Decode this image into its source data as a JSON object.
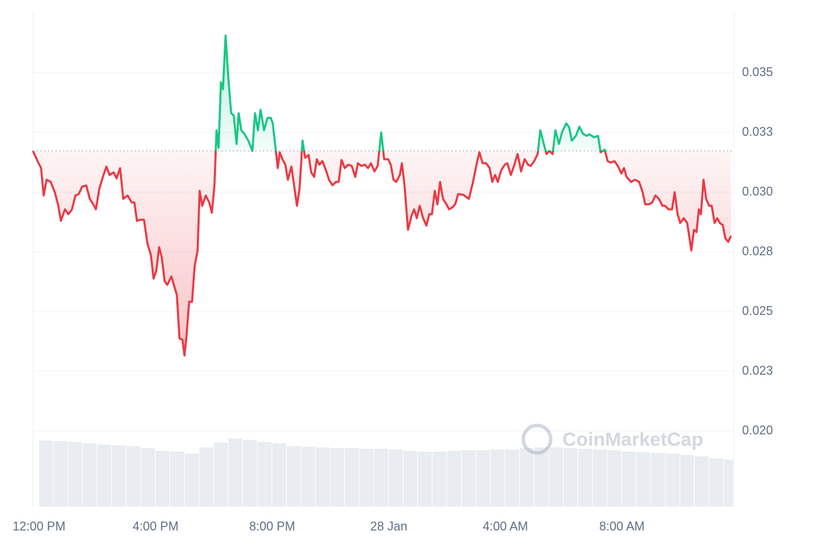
{
  "chart_data": {
    "type": "line",
    "x": [
      -0.21,
      -0.05,
      0.07,
      0.16,
      0.26,
      0.4,
      0.54,
      0.66,
      0.75,
      0.89,
      1.01,
      1.13,
      1.25,
      1.36,
      1.48,
      1.62,
      1.74,
      1.86,
      1.95,
      2.07,
      2.19,
      2.31,
      2.42,
      2.56,
      2.66,
      2.78,
      2.89,
      3.04,
      3.18,
      3.27,
      3.36,
      3.48,
      3.6,
      3.72,
      3.84,
      3.93,
      4.02,
      4.12,
      4.21,
      4.31,
      4.4,
      4.54,
      4.66,
      4.73,
      4.82,
      4.92,
      4.99,
      5.06,
      5.15,
      5.25,
      5.34,
      5.44,
      5.51,
      5.6,
      5.72,
      5.84,
      5.93,
      6.02,
      6.09,
      6.16,
      6.24,
      6.31,
      6.4,
      6.49,
      6.59,
      6.68,
      6.78,
      6.85,
      6.94,
      7.04,
      7.18,
      7.32,
      7.41,
      7.51,
      7.6,
      7.72,
      7.84,
      7.95,
      8.02,
      8.12,
      8.19,
      8.26,
      8.35,
      8.45,
      8.54,
      8.66,
      8.75,
      8.85,
      8.94,
      9.04,
      9.13,
      9.25,
      9.34,
      9.44,
      9.53,
      9.62,
      9.72,
      9.86,
      9.95,
      10.07,
      10.19,
      10.28,
      10.38,
      10.49,
      10.61,
      10.73,
      10.85,
      10.94,
      11.06,
      11.18,
      11.29,
      11.39,
      11.51,
      11.62,
      11.74,
      11.84,
      11.98,
      12.07,
      12.16,
      12.26,
      12.38,
      12.45,
      12.54,
      12.66,
      12.78,
      12.87,
      12.96,
      13.06,
      13.18,
      13.29,
      13.39,
      13.48,
      13.58,
      13.67,
      13.76,
      13.86,
      13.98,
      14.07,
      14.19,
      14.28,
      14.38,
      14.56,
      14.75,
      14.89,
      15.01,
      15.11,
      15.22,
      15.34,
      15.46,
      15.55,
      15.65,
      15.74,
      15.86,
      15.98,
      16.07,
      16.19,
      16.31,
      16.42,
      16.54,
      16.66,
      16.78,
      16.87,
      16.99,
      17.11,
      17.2,
      17.32,
      17.41,
      17.51,
      17.62,
      17.72,
      17.84,
      17.95,
      18.09,
      18.19,
      18.28,
      18.42,
      18.54,
      18.66,
      18.78,
      18.89,
      19.04,
      19.18,
      19.27,
      19.41,
      19.51,
      19.62,
      19.74,
      19.86,
      19.98,
      20.07,
      20.16,
      20.31,
      20.45,
      20.59,
      20.71,
      20.8,
      20.92,
      21.04,
      21.15,
      21.27,
      21.39,
      21.48,
      21.6,
      21.72,
      21.81,
      21.91,
      22.0,
      22.12,
      22.24,
      22.38,
      22.47,
      22.56,
      22.64,
      22.71,
      22.8,
      22.89,
      22.99,
      23.08,
      23.18,
      23.27,
      23.36,
      23.46,
      23.55,
      23.65,
      23.74
    ],
    "values": [
      0.03173,
      0.0313,
      0.03101,
      0.02986,
      0.03052,
      0.03043,
      0.03,
      0.02943,
      0.0288,
      0.02928,
      0.02908,
      0.02928,
      0.02986,
      0.02992,
      0.03023,
      0.03028,
      0.02972,
      0.02949,
      0.02928,
      0.03015,
      0.03064,
      0.03107,
      0.03072,
      0.03083,
      0.03058,
      0.03101,
      0.02972,
      0.02986,
      0.02957,
      0.02957,
      0.0288,
      0.02885,
      0.02885,
      0.02785,
      0.02736,
      0.02638,
      0.0267,
      0.0277,
      0.02727,
      0.02627,
      0.02612,
      0.02647,
      0.02598,
      0.02569,
      0.02388,
      0.02382,
      0.02316,
      0.02397,
      0.02541,
      0.02541,
      0.0269,
      0.02756,
      0.03006,
      0.02943,
      0.02986,
      0.02957,
      0.02914,
      0.03029,
      0.03259,
      0.03186,
      0.0346,
      0.03431,
      0.03656,
      0.03489,
      0.03331,
      0.03322,
      0.03202,
      0.03331,
      0.03259,
      0.03245,
      0.03216,
      0.03173,
      0.03331,
      0.03259,
      0.03345,
      0.03259,
      0.03311,
      0.03311,
      0.03288,
      0.03178,
      0.03101,
      0.03167,
      0.03138,
      0.03115,
      0.03052,
      0.03107,
      0.03029,
      0.02943,
      0.03015,
      0.03216,
      0.03144,
      0.03156,
      0.03083,
      0.03064,
      0.03138,
      0.03115,
      0.0313,
      0.03087,
      0.03052,
      0.03029,
      0.03043,
      0.03043,
      0.03135,
      0.03101,
      0.03115,
      0.0311,
      0.03064,
      0.03121,
      0.0311,
      0.03115,
      0.03101,
      0.03121,
      0.03087,
      0.0311,
      0.0325,
      0.03138,
      0.03138,
      0.03115,
      0.03052,
      0.03043,
      0.03072,
      0.03121,
      0.03029,
      0.02842,
      0.029,
      0.02928,
      0.02891,
      0.02943,
      0.02891,
      0.0286,
      0.02908,
      0.02908,
      0.03006,
      0.02949,
      0.03043,
      0.02972,
      0.02949,
      0.02928,
      0.02937,
      0.02949,
      0.02992,
      0.02989,
      0.02972,
      0.03043,
      0.03115,
      0.03167,
      0.03121,
      0.03121,
      0.03101,
      0.03043,
      0.03072,
      0.03043,
      0.03092,
      0.03115,
      0.03121,
      0.03072,
      0.03115,
      0.0316,
      0.03087,
      0.03138,
      0.03115,
      0.0311,
      0.0313,
      0.0316,
      0.03259,
      0.03202,
      0.0316,
      0.03173,
      0.0316,
      0.03259,
      0.03202,
      0.03253,
      0.03288,
      0.03271,
      0.03216,
      0.03236,
      0.03274,
      0.03245,
      0.03236,
      0.03242,
      0.0323,
      0.03236,
      0.03167,
      0.03178,
      0.0313,
      0.03124,
      0.0313,
      0.0311,
      0.03078,
      0.03101,
      0.03064,
      0.03043,
      0.03052,
      0.03043,
      0.03,
      0.02949,
      0.02949,
      0.02957,
      0.02986,
      0.02972,
      0.02943,
      0.02943,
      0.02928,
      0.02928,
      0.03,
      0.02908,
      0.02871,
      0.02891,
      0.02871,
      0.02756,
      0.02842,
      0.02833,
      0.02928,
      0.02908,
      0.03052,
      0.02972,
      0.02943,
      0.02943,
      0.02871,
      0.02891,
      0.02871,
      0.02862,
      0.02806,
      0.02792,
      0.02817
    ],
    "baseline": 0.03173,
    "up_color": "#16c784",
    "down_color": "#ea3943",
    "xlim": [
      -0.21,
      23.84
    ],
    "ylim": [
      0.01684,
      0.03753
    ],
    "yticks": [
      {
        "value": 0.02,
        "label": "0.020"
      },
      {
        "value": 0.0225,
        "label": "0.023"
      },
      {
        "value": 0.025,
        "label": "0.025"
      },
      {
        "value": 0.0275,
        "label": "0.028"
      },
      {
        "value": 0.03,
        "label": "0.030"
      },
      {
        "value": 0.0325,
        "label": "0.033"
      },
      {
        "value": 0.035,
        "label": "0.035"
      }
    ],
    "xticks": [
      {
        "value": 0,
        "label": "12:00 PM"
      },
      {
        "value": 4,
        "label": "4:00 PM"
      },
      {
        "value": 8,
        "label": "8:00 PM"
      },
      {
        "value": 12,
        "label": "28 Jan"
      },
      {
        "value": 16,
        "label": "4:00 AM"
      },
      {
        "value": 20,
        "label": "8:00 AM"
      }
    ],
    "grid": true,
    "watermark": "CoinMarketCap",
    "volume": {
      "color": "#e9ecf0",
      "vlim": [
        0,
        120
      ],
      "x": [
        0,
        0.5,
        1,
        1.5,
        2,
        2.5,
        3,
        3.5,
        4,
        4.5,
        5,
        5.5,
        6,
        6.5,
        7,
        7.5,
        8,
        8.5,
        9,
        9.5,
        10,
        10.5,
        11,
        11.5,
        12,
        12.5,
        13,
        13.5,
        14,
        14.5,
        15,
        15.5,
        16,
        16.5,
        17,
        17.5,
        18,
        18.5,
        19,
        19.5,
        20,
        20.5,
        21,
        21.5,
        22,
        22.5,
        23,
        23.5
      ],
      "values": [
        96,
        95,
        94,
        92,
        90,
        89,
        88,
        85,
        81,
        80,
        77,
        86,
        93,
        99,
        97,
        94,
        92,
        88,
        87,
        86,
        85,
        85,
        84,
        84,
        83,
        81,
        80,
        80,
        81,
        82,
        82,
        83,
        83,
        85,
        86,
        86,
        85,
        84,
        83,
        82,
        80,
        79,
        78,
        77,
        75,
        73,
        70,
        68
      ]
    }
  }
}
